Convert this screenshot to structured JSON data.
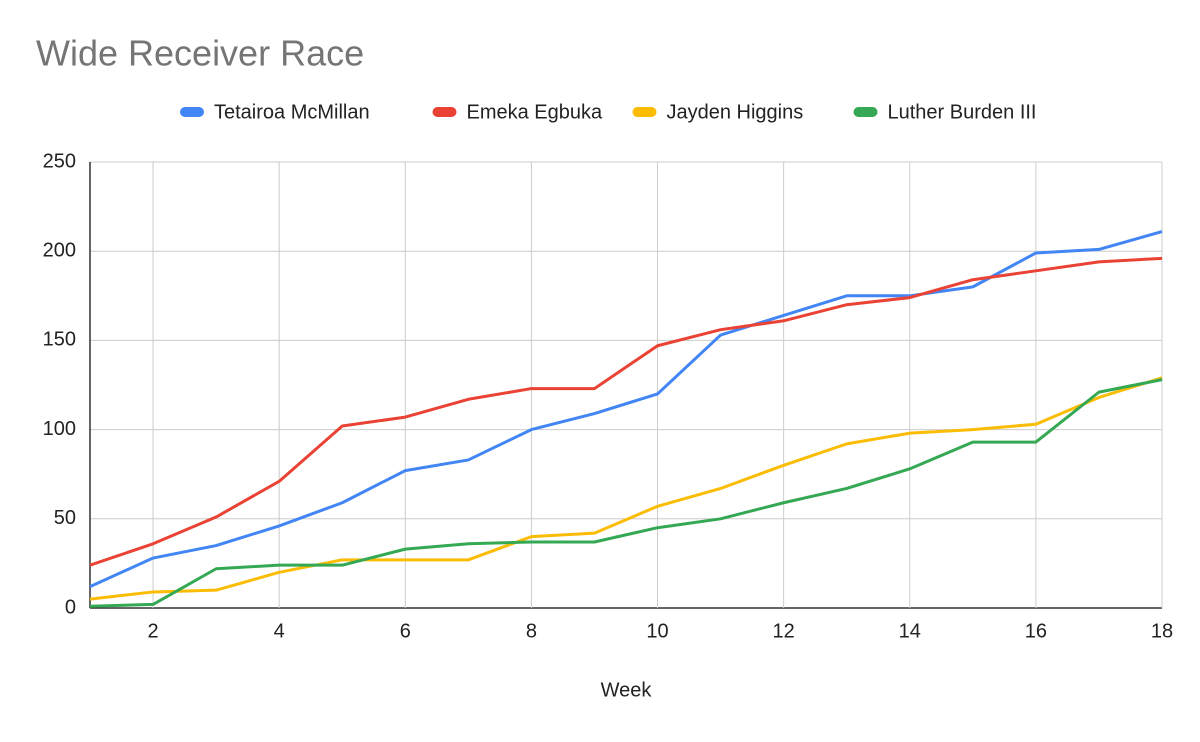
{
  "chart_data": {
    "type": "line",
    "title": "Wide Receiver Race",
    "x_label": "Week",
    "x": [
      1,
      2,
      3,
      4,
      5,
      6,
      7,
      8,
      9,
      10,
      11,
      12,
      13,
      14,
      15,
      16,
      17,
      18
    ],
    "series": [
      {
        "name": "Tetairoa McMillan",
        "color": "#4285f4",
        "values": [
          12,
          28,
          35,
          46,
          59,
          77,
          83,
          100,
          109,
          120,
          153,
          164,
          175,
          175,
          180,
          199,
          201,
          211
        ]
      },
      {
        "name": "Emeka Egbuka",
        "color": "#ea4335",
        "values": [
          24,
          36,
          51,
          71,
          102,
          107,
          117,
          123,
          123,
          147,
          156,
          161,
          170,
          174,
          184,
          189,
          194,
          196
        ]
      },
      {
        "name": "Jayden Higgins",
        "color": "#fbbc04",
        "values": [
          5,
          9,
          10,
          20,
          27,
          27,
          27,
          40,
          42,
          57,
          67,
          80,
          92,
          98,
          100,
          103,
          118,
          129
        ]
      },
      {
        "name": "Luther Burden III",
        "color": "#34a853",
        "values": [
          1,
          2,
          22,
          24,
          24,
          33,
          36,
          37,
          37,
          45,
          50,
          59,
          67,
          78,
          93,
          93,
          121,
          128
        ]
      }
    ],
    "xlim": [
      1,
      18
    ],
    "xticks": [
      2,
      4,
      6,
      8,
      10,
      12,
      14,
      16,
      18
    ],
    "ylim": [
      0,
      250
    ],
    "yticks": [
      0,
      50,
      100,
      150,
      200,
      250
    ],
    "grid": true,
    "legend": "top"
  }
}
